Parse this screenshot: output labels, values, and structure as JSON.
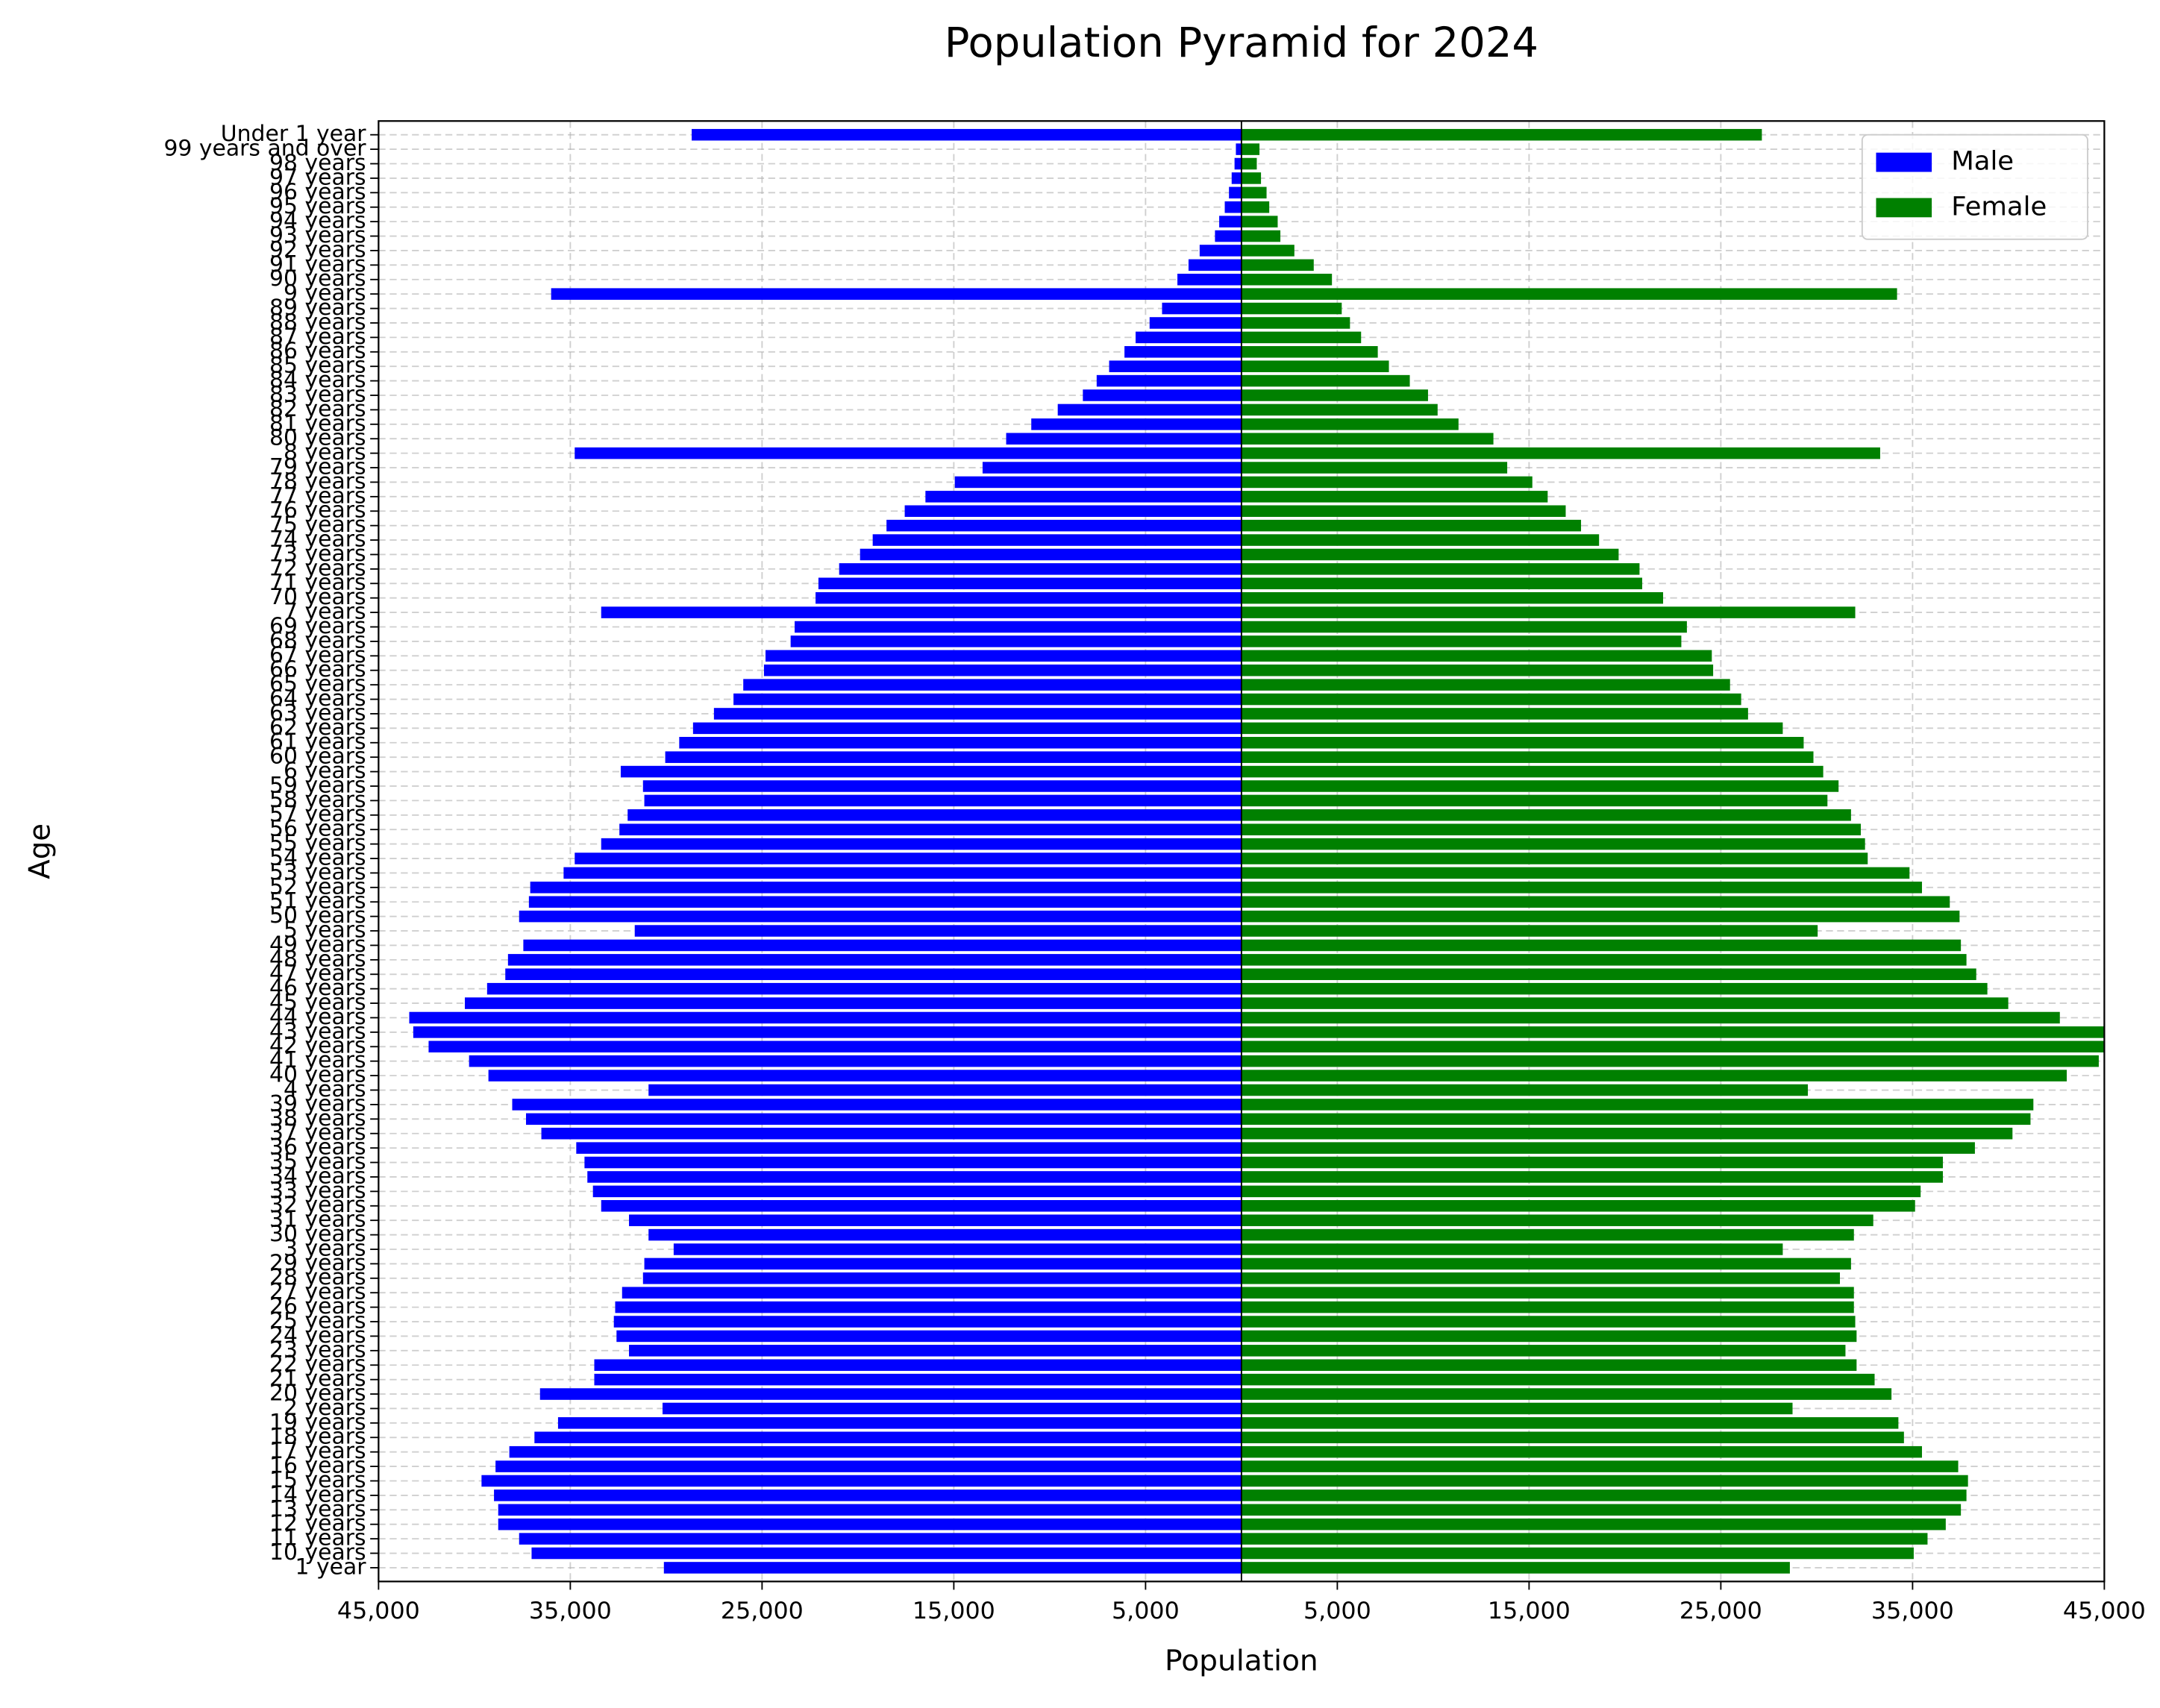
{
  "chart_data": {
    "type": "bar",
    "orientation": "horizontal",
    "title": "Population Pyramid for 2024",
    "x_label": "Population",
    "y_label": "Age",
    "categories": [
      "1 year",
      "10 years",
      "11 years",
      "12 years",
      "13 years",
      "14 years",
      "15 years",
      "16 years",
      "17 years",
      "18 years",
      "19 years",
      "2 years",
      "20 years",
      "21 years",
      "22 years",
      "23 years",
      "24 years",
      "25 years",
      "26 years",
      "27 years",
      "28 years",
      "29 years",
      "3 years",
      "30 years",
      "31 years",
      "32 years",
      "33 years",
      "34 years",
      "35 years",
      "36 years",
      "37 years",
      "38 years",
      "39 years",
      "4 years",
      "40 years",
      "41 years",
      "42 years",
      "43 years",
      "44 years",
      "45 years",
      "46 years",
      "47 years",
      "48 years",
      "49 years",
      "5 years",
      "50 years",
      "51 years",
      "52 years",
      "53 years",
      "54 years",
      "55 years",
      "56 years",
      "57 years",
      "58 years",
      "59 years",
      "6 years",
      "60 years",
      "61 years",
      "62 years",
      "63 years",
      "64 years",
      "65 years",
      "66 years",
      "67 years",
      "68 years",
      "69 years",
      "7 years",
      "70 years",
      "71 years",
      "72 years",
      "73 years",
      "74 years",
      "75 years",
      "76 years",
      "77 years",
      "78 years",
      "79 years",
      "8 years",
      "80 years",
      "81 years",
      "82 years",
      "83 years",
      "84 years",
      "85 years",
      "86 years",
      "87 years",
      "88 years",
      "89 years",
      "9 years",
      "90 years",
      "91 years",
      "92 years",
      "93 years",
      "94 years",
      "95 years",
      "96 years",
      "97 years",
      "98 years",
      "99 years and over",
      "Under 1 year"
    ],
    "series": [
      {
        "name": "Male",
        "color": "blue",
        "values": [
          -30120,
          -37020,
          -37670,
          -38760,
          -38760,
          -38980,
          -39630,
          -38900,
          -38180,
          -36870,
          -35640,
          -30190,
          -36580,
          -33750,
          -33750,
          -31940,
          -32590,
          -32730,
          -32660,
          -32300,
          -31210,
          -31140,
          -29610,
          -30920,
          -31940,
          -33390,
          -33820,
          -34110,
          -34260,
          -34690,
          -36510,
          -37310,
          -38030,
          -30920,
          -39270,
          -40280,
          -42390,
          -43190,
          -43400,
          -40500,
          -39340,
          -38390,
          -38250,
          -37450,
          -31640,
          -37670,
          -37160,
          -37090,
          -35350,
          -34770,
          -33390,
          -32440,
          -32010,
          -31140,
          -31210,
          -32370,
          -30050,
          -29320,
          -28600,
          -27510,
          -26490,
          -25980,
          -24900,
          -24820,
          -23510,
          -23300,
          -33390,
          -22210,
          -22060,
          -20980,
          -19890,
          -19230,
          -18510,
          -17560,
          -16480,
          -14950,
          -13500,
          -34770,
          -12270,
          -10960,
          -9580,
          -8270,
          -7550,
          -6900,
          -6100,
          -5520,
          -4790,
          -4140,
          -36000,
          -3340,
          -2760,
          -2180,
          -1380,
          -1160,
          -870,
          -650,
          -510,
          -360,
          -290,
          -28670
        ]
      },
      {
        "name": "Female",
        "color": "green",
        "values": [
          28600,
          35060,
          35780,
          36730,
          37520,
          37810,
          37890,
          37380,
          35490,
          34550,
          34260,
          28740,
          33900,
          33020,
          32080,
          31500,
          32080,
          32010,
          31940,
          31940,
          31210,
          31790,
          28230,
          31940,
          32950,
          35130,
          35420,
          36580,
          36580,
          38250,
          40210,
          41150,
          41300,
          29540,
          43040,
          44710,
          45200,
          45400,
          42680,
          39990,
          38900,
          38320,
          37810,
          37520,
          30050,
          37450,
          36940,
          35490,
          34840,
          32660,
          32520,
          32300,
          31790,
          30560,
          31140,
          30340,
          29830,
          29320,
          28230,
          26420,
          26060,
          25480,
          24600,
          24530,
          22940,
          23230,
          32010,
          21990,
          20900,
          20760,
          19670,
          18650,
          17710,
          16910,
          15970,
          15170,
          13860,
          33310,
          13140,
          11320,
          10230,
          9730,
          8780,
          7690,
          7110,
          6240,
          5660,
          5230,
          34190,
          4720,
          3770,
          2760,
          2030,
          1890,
          1450,
          1310,
          1020,
          800,
          940,
          27140
        ]
      }
    ],
    "xlim": [
      -45000,
      45000
    ],
    "xticks": [
      {
        "value": -45000,
        "label": "45,000"
      },
      {
        "value": -35000,
        "label": "35,000"
      },
      {
        "value": -25000,
        "label": "25,000"
      },
      {
        "value": -15000,
        "label": "15,000"
      },
      {
        "value": -5000,
        "label": "5,000"
      },
      {
        "value": 5000,
        "label": "5,000"
      },
      {
        "value": 15000,
        "label": "15,000"
      },
      {
        "value": 25000,
        "label": "25,000"
      },
      {
        "value": 35000,
        "label": "35,000"
      },
      {
        "value": 45000,
        "label": "45,000"
      }
    ],
    "grid": true,
    "legend": "upper right"
  }
}
